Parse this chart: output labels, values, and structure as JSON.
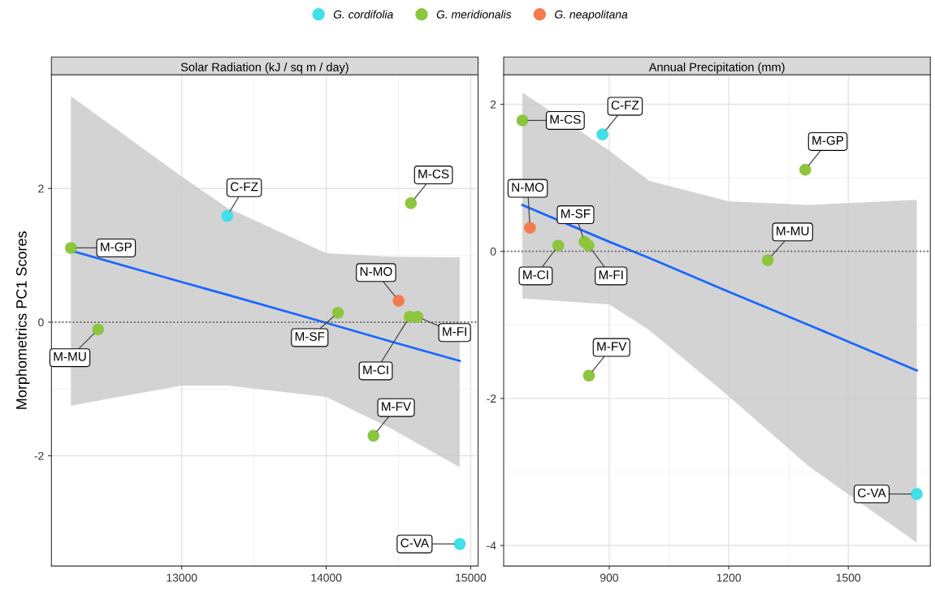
{
  "chart_data": [
    {
      "type": "scatter",
      "title": "Solar Radiation (kJ / sq m / day)",
      "ylabel": "Morphometrics PC1 Scores",
      "xlim": [
        12098,
        15051
      ],
      "ylim": [
        -3.65,
        3.7
      ],
      "xticks": [
        13000,
        14000,
        15000
      ],
      "yticks": [
        -2,
        0,
        2
      ],
      "grid": true,
      "legend": "top",
      "series": [
        {
          "name": "G. cordifolia",
          "color": "#3fe0e8",
          "marker": "circle",
          "x": [
            13315,
            14924
          ],
          "values": [
            1.59,
            -3.32
          ]
        },
        {
          "name": "G. meridionalis",
          "color": "#8cc63e",
          "marker": "circle",
          "x": [
            12233,
            12421,
            14586,
            14081,
            14577,
            14631,
            14327
          ],
          "values": [
            1.11,
            -0.11,
            1.78,
            0.14,
            0.08,
            0.08,
            -1.7
          ]
        },
        {
          "name": "G. neapolitana",
          "color": "#f47b4f",
          "marker": "circle",
          "x": [
            14501
          ],
          "values": [
            0.32
          ]
        },
        {
          "type": "line",
          "color": "#1a66ff",
          "marker": "none",
          "x": [
            12233,
            13000,
            13315,
            14000,
            14447,
            14924
          ],
          "values": [
            1.07,
            0.6,
            0.41,
            -0.01,
            -0.29,
            -0.58
          ],
          "lower": [
            -1.25,
            -0.95,
            -0.95,
            -1.12,
            -1.59,
            -2.17
          ],
          "upper": [
            3.38,
            2.18,
            1.71,
            1.03,
            0.98,
            0.97
          ]
        }
      ],
      "ref_lines": [
        {
          "axis": "y",
          "value": 0,
          "color": "#555555",
          "line_style": "dotted"
        }
      ],
      "annotations": [
        {
          "text": "M-GP",
          "x": 12233,
          "y": 1.11
        },
        {
          "text": "M-MU",
          "x": 12421,
          "y": -0.11
        },
        {
          "text": "C-FZ",
          "x": 13315,
          "y": 1.59
        },
        {
          "text": "M-CS",
          "x": 14586,
          "y": 1.78
        },
        {
          "text": "M-SF",
          "x": 14081,
          "y": 0.14
        },
        {
          "text": "N-MO",
          "x": 14501,
          "y": 0.32
        },
        {
          "text": "M-CI",
          "x": 14577,
          "y": 0.08
        },
        {
          "text": "M-FI",
          "x": 14631,
          "y": 0.08
        },
        {
          "text": "M-FV",
          "x": 14327,
          "y": -1.7
        },
        {
          "text": "C-VA",
          "x": 14924,
          "y": -3.32
        }
      ]
    },
    {
      "type": "scatter",
      "title": "Annual Precipitation (mm)",
      "xlim": [
        635,
        1706
      ],
      "ylim": [
        -4.28,
        2.4
      ],
      "xticks": [
        900,
        1200,
        1500
      ],
      "yticks": [
        -4,
        -2,
        0,
        2
      ],
      "grid": true,
      "legend": "top",
      "series": [
        {
          "name": "G. cordifolia",
          "color": "#3fe0e8",
          "marker": "circle",
          "x": [
            883,
            1672
          ],
          "values": [
            1.59,
            -3.3
          ]
        },
        {
          "name": "G. meridionalis",
          "color": "#8cc63e",
          "marker": "circle",
          "x": [
            682,
            1392,
            838,
            848,
            772,
            1298,
            849
          ],
          "values": [
            1.78,
            1.11,
            0.13,
            0.08,
            0.08,
            -0.12,
            -1.69
          ]
        },
        {
          "name": "G. neapolitana",
          "color": "#f47b4f",
          "marker": "circle",
          "x": [
            701
          ],
          "values": [
            0.32
          ]
        },
        {
          "type": "line",
          "color": "#1a66ff",
          "marker": "none",
          "x": [
            682,
            900,
            1000,
            1200,
            1400,
            1672
          ],
          "values": [
            0.63,
            0.13,
            -0.09,
            -0.55,
            -1.0,
            -1.62
          ],
          "lower": [
            -0.64,
            -0.72,
            -1.07,
            -1.97,
            -2.92,
            -3.96
          ],
          "upper": [
            2.16,
            1.37,
            0.96,
            0.68,
            0.63,
            0.7
          ]
        }
      ],
      "ref_lines": [
        {
          "axis": "y",
          "value": 0,
          "color": "#555555",
          "line_style": "dotted"
        }
      ],
      "annotations": [
        {
          "text": "M-CS",
          "x": 682,
          "y": 1.78
        },
        {
          "text": "C-FZ",
          "x": 883,
          "y": 1.59
        },
        {
          "text": "M-GP",
          "x": 1392,
          "y": 1.11
        },
        {
          "text": "N-MO",
          "x": 701,
          "y": 0.32
        },
        {
          "text": "M-SF",
          "x": 838,
          "y": 0.13
        },
        {
          "text": "M-FI",
          "x": 848,
          "y": 0.08
        },
        {
          "text": "M-CI",
          "x": 772,
          "y": 0.08
        },
        {
          "text": "M-MU",
          "x": 1298,
          "y": -0.12
        },
        {
          "text": "M-FV",
          "x": 849,
          "y": -1.69
        },
        {
          "text": "C-VA",
          "x": 1672,
          "y": -3.3
        }
      ]
    }
  ]
}
